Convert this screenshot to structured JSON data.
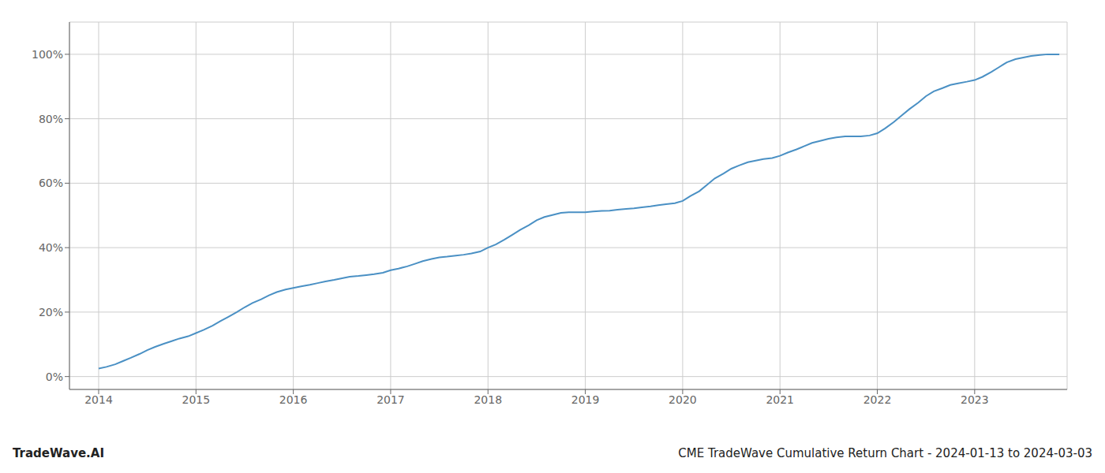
{
  "chart_data": {
    "type": "line",
    "annotations": [
      "TradeWave.AI",
      "CME TradeWave Cumulative Return Chart - 2024-01-13 to 2024-03-03"
    ],
    "x": [
      2014.0,
      2014.08,
      2014.17,
      2014.25,
      2014.33,
      2014.42,
      2014.5,
      2014.58,
      2014.67,
      2014.75,
      2014.83,
      2014.92,
      2015.0,
      2015.08,
      2015.17,
      2015.25,
      2015.33,
      2015.42,
      2015.5,
      2015.58,
      2015.67,
      2015.75,
      2015.83,
      2015.92,
      2016.0,
      2016.08,
      2016.17,
      2016.25,
      2016.33,
      2016.42,
      2016.5,
      2016.58,
      2016.67,
      2016.75,
      2016.83,
      2016.92,
      2017.0,
      2017.08,
      2017.17,
      2017.25,
      2017.33,
      2017.42,
      2017.5,
      2017.58,
      2017.67,
      2017.75,
      2017.83,
      2017.92,
      2018.0,
      2018.08,
      2018.17,
      2018.25,
      2018.33,
      2018.42,
      2018.5,
      2018.58,
      2018.67,
      2018.75,
      2018.83,
      2018.92,
      2019.0,
      2019.08,
      2019.17,
      2019.25,
      2019.33,
      2019.42,
      2019.5,
      2019.58,
      2019.67,
      2019.75,
      2019.83,
      2019.92,
      2020.0,
      2020.08,
      2020.17,
      2020.25,
      2020.33,
      2020.42,
      2020.5,
      2020.58,
      2020.67,
      2020.75,
      2020.83,
      2020.92,
      2021.0,
      2021.08,
      2021.17,
      2021.25,
      2021.33,
      2021.42,
      2021.5,
      2021.58,
      2021.67,
      2021.75,
      2021.83,
      2021.92,
      2022.0,
      2022.08,
      2022.17,
      2022.25,
      2022.33,
      2022.42,
      2022.5,
      2022.58,
      2022.67,
      2022.75,
      2022.83,
      2022.92,
      2023.0,
      2023.08,
      2023.17,
      2023.25,
      2023.33,
      2023.42,
      2023.5,
      2023.58,
      2023.67,
      2023.75,
      2023.83,
      2023.87
    ],
    "values": [
      2.5,
      3.0,
      3.8,
      4.8,
      5.8,
      7.0,
      8.2,
      9.2,
      10.2,
      11.0,
      11.8,
      12.5,
      13.5,
      14.5,
      15.8,
      17.2,
      18.5,
      20.0,
      21.5,
      22.8,
      24.0,
      25.2,
      26.2,
      27.0,
      27.5,
      28.0,
      28.5,
      29.0,
      29.5,
      30.0,
      30.5,
      31.0,
      31.2,
      31.5,
      31.8,
      32.2,
      33.0,
      33.5,
      34.2,
      35.0,
      35.8,
      36.5,
      37.0,
      37.2,
      37.5,
      37.8,
      38.2,
      38.8,
      40.0,
      41.0,
      42.5,
      44.0,
      45.5,
      47.0,
      48.5,
      49.5,
      50.2,
      50.8,
      51.0,
      51.0,
      51.0,
      51.2,
      51.4,
      51.5,
      51.8,
      52.0,
      52.2,
      52.5,
      52.8,
      53.2,
      53.5,
      53.8,
      54.5,
      56.0,
      57.5,
      59.5,
      61.5,
      63.0,
      64.5,
      65.5,
      66.5,
      67.0,
      67.5,
      67.8,
      68.5,
      69.5,
      70.5,
      71.5,
      72.5,
      73.2,
      73.8,
      74.2,
      74.5,
      74.5,
      74.5,
      74.8,
      75.5,
      77.0,
      79.0,
      81.0,
      83.0,
      85.0,
      87.0,
      88.5,
      89.5,
      90.5,
      91.0,
      91.5,
      92.0,
      93.0,
      94.5,
      96.0,
      97.5,
      98.5,
      99.0,
      99.5,
      99.8,
      100.0,
      100.0,
      100.0
    ],
    "color": "#4a90c4",
    "xlim": [
      2013.7,
      2023.95
    ],
    "ylim": [
      -4,
      110
    ],
    "xticks": [
      2014,
      2015,
      2016,
      2017,
      2018,
      2019,
      2020,
      2021,
      2022,
      2023
    ],
    "yticks": [
      {
        "value": 0,
        "label": "0%"
      },
      {
        "value": 20,
        "label": "20%"
      },
      {
        "value": 40,
        "label": "40%"
      },
      {
        "value": 60,
        "label": "60%"
      },
      {
        "value": 80,
        "label": "80%"
      },
      {
        "value": 100,
        "label": "100%"
      }
    ],
    "grid": true
  }
}
